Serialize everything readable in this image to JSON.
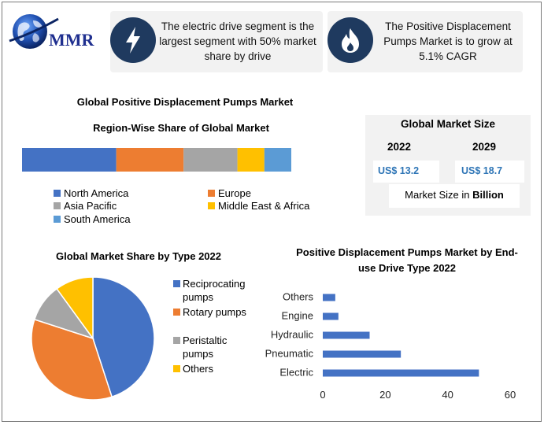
{
  "logo": {
    "text": "MMR",
    "icon": "globe-icon"
  },
  "cards": [
    {
      "icon": "lightning-bolt-icon",
      "text": "The electric drive segment is the largest segment with 50% market share by drive"
    },
    {
      "icon": "flame-icon",
      "text": "The Positive Displacement Pumps Market is to grow at 5.1% CAGR"
    }
  ],
  "region_section": {
    "title": "Global Positive Displacement Pumps Market",
    "subtitle": "Region-Wise Share of Global Market"
  },
  "market_size": {
    "title": "Global Market Size",
    "year1": "2022",
    "year2": "2029",
    "value1": "US$ 13.2",
    "value2": "US$ 18.7",
    "note_prefix": "Market Size in ",
    "note_bold": "Billion"
  },
  "colors": {
    "north_america": "#4472c4",
    "europe": "#ed7d31",
    "asia_pacific": "#a5a5a5",
    "mea": "#ffc000",
    "south_america": "#5b9bd5",
    "bar": "#4472c4",
    "navy": "#1f3a5f"
  },
  "chart_data": [
    {
      "type": "bar",
      "orientation": "horizontal-stacked",
      "title": "Region-Wise Share of Global Market",
      "categories": [
        "North America",
        "Europe",
        "Asia Pacific",
        "Middle East & Africa",
        "South America"
      ],
      "values": [
        35,
        25,
        20,
        10,
        10
      ],
      "legend": [
        "North America",
        "Europe",
        "Asia Pacific",
        "Middle East & Africa",
        "South America"
      ],
      "legend_position": "bottom"
    },
    {
      "type": "pie",
      "title": "Global Market Share by Type 2022",
      "categories": [
        "Reciprocating pumps",
        "Rotary pumps",
        "Peristaltic pumps",
        "Others"
      ],
      "values": [
        45,
        35,
        10,
        10
      ],
      "legend_position": "right"
    },
    {
      "type": "bar",
      "orientation": "horizontal",
      "title": "Positive Displacement Pumps Market by End-use Drive Type 2022",
      "categories": [
        "Others",
        "Engine",
        "Hydraulic",
        "Pneumatic",
        "Electric"
      ],
      "values": [
        4,
        5,
        15,
        25,
        50
      ],
      "xlim": [
        0,
        60
      ],
      "xticks": [
        0,
        20,
        40,
        60
      ],
      "grid": false
    }
  ]
}
